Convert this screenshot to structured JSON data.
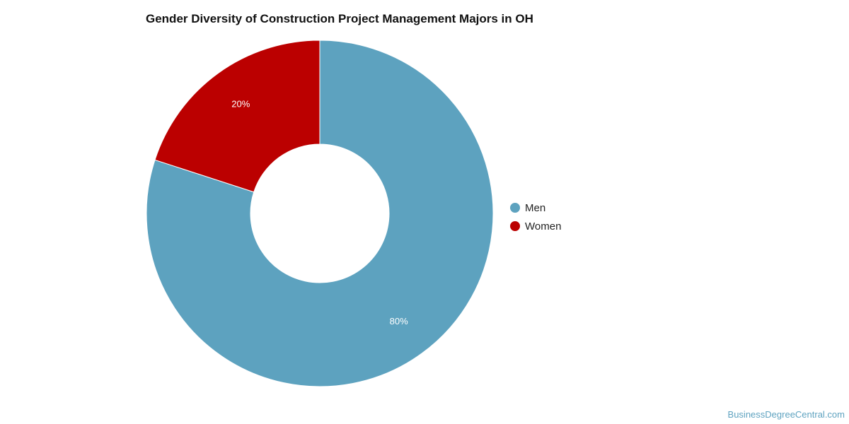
{
  "chart_data": {
    "type": "pie",
    "title": "Gender Diversity of Construction Project Management Majors in OH",
    "slices": [
      {
        "label": "Men",
        "value": 80,
        "display": "80%",
        "color": "#5da2bf"
      },
      {
        "label": "Women",
        "value": 20,
        "display": "20%",
        "color": "#bb0000"
      }
    ],
    "donut": true,
    "legend_placement": "right"
  },
  "watermark": "BusinessDegreeCentral.com"
}
